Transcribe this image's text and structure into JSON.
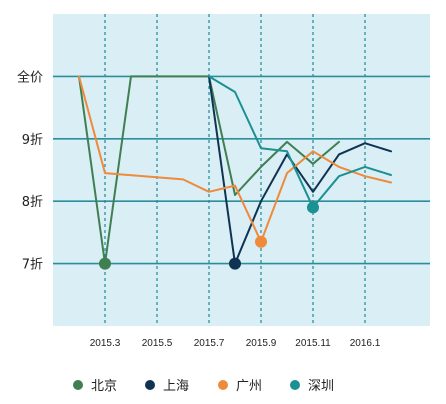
{
  "chart_data": {
    "type": "line",
    "title": "",
    "xlabel": "",
    "ylabel": "",
    "x_tick_labels": [
      "2015.3",
      "2015.5",
      "2015.7",
      "2015.9",
      "2015.11",
      "2016.1"
    ],
    "x_tick_months": [
      2,
      4,
      6,
      8,
      10,
      12
    ],
    "xlim": [
      0,
      14.5
    ],
    "y_tick_labels": [
      "全价",
      "9折",
      "8折",
      "7折"
    ],
    "y_tick_values": [
      10,
      9,
      8,
      7
    ],
    "ylim": [
      6,
      11
    ],
    "grid": "dashed vertical at month ticks, solid horizontal at discount levels",
    "background": "#d9eef5",
    "legend_position": "bottom",
    "series": [
      {
        "name": "北京",
        "color": "#3f7f52",
        "x": [
          1,
          2,
          3,
          6,
          7,
          8,
          9,
          10,
          11
        ],
        "y": [
          10,
          7.0,
          10,
          10,
          8.1,
          8.55,
          8.95,
          8.6,
          8.95
        ],
        "marker": {
          "x": 2,
          "y": 7.0
        }
      },
      {
        "name": "上海",
        "color": "#0f3352",
        "x": [
          6,
          7,
          8,
          9,
          10,
          11,
          12,
          13
        ],
        "y": [
          10,
          7.0,
          8.0,
          8.75,
          8.15,
          8.75,
          8.93,
          8.8
        ],
        "marker": {
          "x": 7,
          "y": 7.0
        }
      },
      {
        "name": "广州",
        "color": "#ef8a3b",
        "x": [
          1,
          2,
          5,
          6,
          7,
          8,
          9,
          10,
          11,
          12,
          13
        ],
        "y": [
          10,
          8.45,
          8.35,
          8.15,
          8.25,
          7.35,
          8.45,
          8.8,
          8.55,
          8.4,
          8.3
        ],
        "marker": {
          "x": 8,
          "y": 7.35
        }
      },
      {
        "name": "深圳",
        "color": "#1b9191",
        "x": [
          6,
          7,
          8,
          9,
          10,
          11,
          12,
          13
        ],
        "y": [
          10,
          9.75,
          8.85,
          8.8,
          7.9,
          8.4,
          8.55,
          8.42
        ],
        "marker": {
          "x": 10,
          "y": 7.9
        }
      }
    ]
  }
}
